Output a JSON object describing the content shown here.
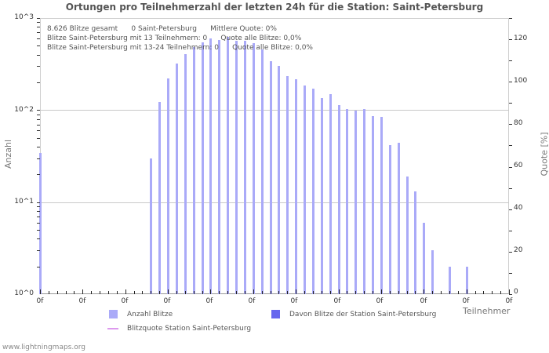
{
  "header": {
    "title": "Ortungen pro Teilnehmerzahl der letzten 24h für die Station: Saint-Petersburg"
  },
  "info_lines": [
    "8.626 Blitze gesamt      0 Saint-Petersburg      Mittlere Quote: 0%",
    "Blitze Saint-Petersburg mit 13 Teilnehmern: 0      Quote alle Blitze: 0,0%",
    "Blitze Saint-Petersburg mit 13-24 Teilnehmern: 0      Quote alle Blitze: 0,0%"
  ],
  "axes": {
    "y_left_title": "Anzahl",
    "y_right_title": "Quote [%]",
    "x_title": "Teilnehmer",
    "y_left_ticks": [
      "10^3",
      "10^2",
      "10^1",
      "10^0"
    ],
    "y_right_ticks": [
      "120",
      "100",
      "80",
      "60",
      "40",
      "20",
      "0"
    ],
    "x_tick_labels": [
      "0f",
      "0f",
      "0f",
      "0f",
      "0f",
      "0f",
      "0f",
      "0f",
      "0f",
      "0f",
      "0f",
      "0f"
    ]
  },
  "legend": {
    "anzahl": "Anzahl Blitze",
    "davon": "Davon Blitze der Station Saint-Petersburg",
    "quote": "Blitzquote Station Saint-Petersburg"
  },
  "colors": {
    "anzahl": "#aaaaf8",
    "davon": "#6666ee",
    "quote": "#dd99ee",
    "grid": "#c8c8c8"
  },
  "footer": {
    "source": "www.lightningmaps.org"
  },
  "chart_data": {
    "type": "bar",
    "title": "Ortungen pro Teilnehmerzahl der letzten 24h für die Station: Saint-Petersburg",
    "xlabel": "Teilnehmer",
    "ylabel": "Anzahl",
    "ylabel_right": "Quote [%]",
    "y_scale": "log",
    "ylim": [
      1,
      1000
    ],
    "ylim_right": [
      0,
      130
    ],
    "grid": true,
    "legend_position": "bottom",
    "x_slots": 55,
    "x_tick_labels": "0f (every 5 slots)",
    "series": [
      {
        "name": "Anzahl Blitze",
        "slots": [
          0,
          13,
          14,
          15,
          16,
          17,
          18,
          19,
          20,
          21,
          22,
          23,
          24,
          25,
          26,
          27,
          28,
          29,
          30,
          31,
          32,
          33,
          34,
          35,
          36,
          37,
          38,
          39,
          40,
          41,
          42,
          43,
          44,
          45,
          46,
          48,
          50
        ],
        "values": [
          34,
          30,
          122,
          220,
          320,
          410,
          480,
          550,
          600,
          580,
          620,
          570,
          570,
          530,
          460,
          340,
          300,
          235,
          215,
          185,
          170,
          135,
          150,
          113,
          102,
          98,
          102,
          86,
          84,
          42,
          44,
          19,
          13,
          6,
          3,
          2,
          2
        ]
      },
      {
        "name": "Davon Blitze der Station Saint-Petersburg",
        "values": []
      },
      {
        "name": "Blitzquote Station Saint-Petersburg",
        "values": []
      }
    ]
  }
}
